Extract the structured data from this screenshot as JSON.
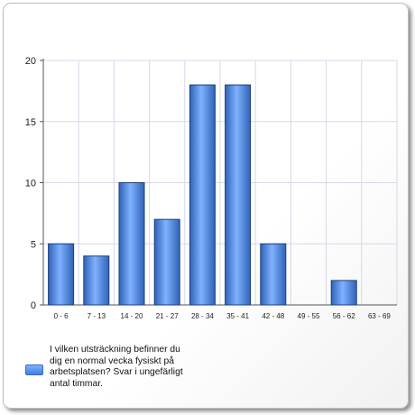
{
  "chart_data": {
    "type": "bar",
    "categories": [
      "0 - 6",
      "7 - 13",
      "14 - 20",
      "21 - 27",
      "28 - 34",
      "35 - 41",
      "42 - 48",
      "49 - 55",
      "56 - 62",
      "63 - 69"
    ],
    "series": [
      {
        "name": "I vilken utsträckning befinner du dig en normal vecka fysiskt på arbetsplatsen? Svar i ungefärligt antal timmar.",
        "values": [
          5,
          4,
          10,
          7,
          18,
          18,
          5,
          0,
          2,
          0
        ]
      }
    ],
    "ylim": [
      0,
      20
    ],
    "yticks": [
      0,
      5,
      10,
      15,
      20
    ],
    "grid": true,
    "legend_position": "bottom-left",
    "colors": {
      "bar_light": "#7fb1ff",
      "bar_dark": "#2f63b8",
      "grid": "#d4d9e6"
    }
  }
}
